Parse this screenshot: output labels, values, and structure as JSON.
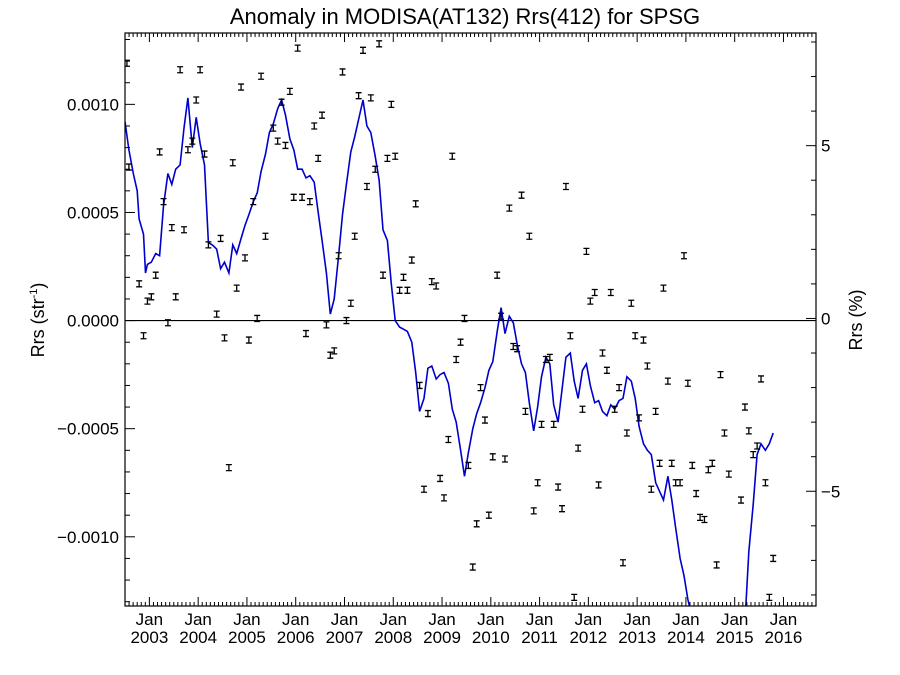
{
  "chart_data": {
    "type": "scatter",
    "title": "Anomaly in MODISA(AT132) Rrs(412) for SPSG",
    "ylabel": "Rrs (str",
    "ylabel_sup": "-1",
    "ylabel_close": ")",
    "y2label": "Rrs (%)",
    "xlim": [
      2002.5,
      2016.667
    ],
    "ylim": [
      -0.00132,
      0.00133
    ],
    "y2lim": [
      -8.32,
      8.26
    ],
    "x_ticks": [
      {
        "x": 2003.0,
        "top": "Jan",
        "bottom": "2003"
      },
      {
        "x": 2004.0,
        "top": "Jan",
        "bottom": "2004"
      },
      {
        "x": 2005.0,
        "top": "Jan",
        "bottom": "2005"
      },
      {
        "x": 2006.0,
        "top": "Jan",
        "bottom": "2006"
      },
      {
        "x": 2007.0,
        "top": "Jan",
        "bottom": "2007"
      },
      {
        "x": 2008.0,
        "top": "Jan",
        "bottom": "2008"
      },
      {
        "x": 2009.0,
        "top": "Jan",
        "bottom": "2009"
      },
      {
        "x": 2010.0,
        "top": "Jan",
        "bottom": "2010"
      },
      {
        "x": 2011.0,
        "top": "Jan",
        "bottom": "2011"
      },
      {
        "x": 2012.0,
        "top": "Jan",
        "bottom": "2012"
      },
      {
        "x": 2013.0,
        "top": "Jan",
        "bottom": "2013"
      },
      {
        "x": 2014.0,
        "top": "Jan",
        "bottom": "2014"
      },
      {
        "x": 2015.0,
        "top": "Jan",
        "bottom": "2015"
      },
      {
        "x": 2016.0,
        "top": "Jan",
        "bottom": "2016"
      }
    ],
    "y_ticks": [
      {
        "value": 0.001,
        "label": "0.0010"
      },
      {
        "value": 0.0005,
        "label": "0.0005"
      },
      {
        "value": 0.0,
        "label": "0.0000"
      },
      {
        "value": -0.0005,
        "label": "−0.0005"
      },
      {
        "value": -0.001,
        "label": "−0.0010"
      }
    ],
    "y2_ticks": [
      {
        "value": 5,
        "label": "5"
      },
      {
        "value": 0,
        "label": "0"
      },
      {
        "value": -5,
        "label": "−5"
      }
    ],
    "zero_line": true,
    "colors": {
      "line": "#0000cc",
      "points": "#000000",
      "axes": "#000000"
    },
    "points": [
      [
        2002.54,
        0.00119
      ],
      [
        2002.58,
        0.00071
      ],
      [
        2002.79,
        0.00017
      ],
      [
        2002.88,
        -7e-05
      ],
      [
        2002.96,
        9e-05
      ],
      [
        2003.04,
        0.00011
      ],
      [
        2003.13,
        0.00021
      ],
      [
        2003.21,
        0.00078
      ],
      [
        2003.29,
        0.00055
      ],
      [
        2003.38,
        -1e-05
      ],
      [
        2003.46,
        0.00043
      ],
      [
        2003.54,
        0.00011
      ],
      [
        2003.63,
        0.00116
      ],
      [
        2003.71,
        0.00042
      ],
      [
        2003.79,
        0.00079
      ],
      [
        2003.88,
        0.00083
      ],
      [
        2003.96,
        0.00102
      ],
      [
        2004.04,
        0.00116
      ],
      [
        2004.13,
        0.00077
      ],
      [
        2004.21,
        0.00035
      ],
      [
        2004.38,
        3e-05
      ],
      [
        2004.46,
        0.00038
      ],
      [
        2004.54,
        -8e-05
      ],
      [
        2004.63,
        -0.00068
      ],
      [
        2004.71,
        0.00073
      ],
      [
        2004.79,
        0.00015
      ],
      [
        2004.88,
        0.00108
      ],
      [
        2004.96,
        0.00029
      ],
      [
        2005.04,
        -9e-05
      ],
      [
        2005.13,
        0.00055
      ],
      [
        2005.21,
        1e-05
      ],
      [
        2005.29,
        0.00113
      ],
      [
        2005.38,
        0.00039
      ],
      [
        2005.54,
        0.00089
      ],
      [
        2005.63,
        0.00083
      ],
      [
        2005.71,
        0.00101
      ],
      [
        2005.79,
        0.00081
      ],
      [
        2005.88,
        0.00106
      ],
      [
        2005.96,
        0.00057
      ],
      [
        2006.04,
        0.00126
      ],
      [
        2006.13,
        0.00057
      ],
      [
        2006.21,
        -6e-05
      ],
      [
        2006.29,
        0.00055
      ],
      [
        2006.38,
        0.0009
      ],
      [
        2006.46,
        0.00075
      ],
      [
        2006.54,
        0.00095
      ],
      [
        2006.63,
        -2e-05
      ],
      [
        2006.71,
        -0.00016
      ],
      [
        2006.79,
        -0.00014
      ],
      [
        2006.88,
        0.0003
      ],
      [
        2006.96,
        0.00115
      ],
      [
        2007.04,
        0.0
      ],
      [
        2007.13,
        8e-05
      ],
      [
        2007.21,
        0.00039
      ],
      [
        2007.29,
        0.00104
      ],
      [
        2007.38,
        0.00125
      ],
      [
        2007.46,
        0.00062
      ],
      [
        2007.54,
        0.00103
      ],
      [
        2007.63,
        0.0007
      ],
      [
        2007.71,
        0.00128
      ],
      [
        2007.79,
        0.00021
      ],
      [
        2007.88,
        0.00075
      ],
      [
        2007.96,
        0.001
      ],
      [
        2008.04,
        0.00076
      ],
      [
        2008.13,
        0.00014
      ],
      [
        2008.21,
        0.0002
      ],
      [
        2008.29,
        0.00014
      ],
      [
        2008.38,
        0.00028
      ],
      [
        2008.46,
        0.00054
      ],
      [
        2008.54,
        -0.0003
      ],
      [
        2008.63,
        -0.00078
      ],
      [
        2008.71,
        -0.00043
      ],
      [
        2008.79,
        0.00018
      ],
      [
        2008.88,
        0.00016
      ],
      [
        2008.96,
        -0.00073
      ],
      [
        2009.04,
        -0.00082
      ],
      [
        2009.13,
        -0.00055
      ],
      [
        2009.21,
        0.00076
      ],
      [
        2009.29,
        -0.00018
      ],
      [
        2009.38,
        -0.0001
      ],
      [
        2009.46,
        1e-05
      ],
      [
        2009.54,
        -0.00067
      ],
      [
        2009.63,
        -0.00114
      ],
      [
        2009.71,
        -0.00094
      ],
      [
        2009.79,
        -0.00031
      ],
      [
        2009.88,
        -0.00046
      ],
      [
        2009.96,
        -0.0009
      ],
      [
        2010.04,
        -0.00063
      ],
      [
        2010.13,
        0.00021
      ],
      [
        2010.21,
        2e-05
      ],
      [
        2010.29,
        -0.00064
      ],
      [
        2010.38,
        0.00052
      ],
      [
        2010.46,
        -0.00012
      ],
      [
        2010.54,
        -0.00013
      ],
      [
        2010.63,
        0.00058
      ],
      [
        2010.71,
        -0.00042
      ],
      [
        2010.79,
        0.00039
      ],
      [
        2010.88,
        -0.00088
      ],
      [
        2010.96,
        -0.00075
      ],
      [
        2011.04,
        -0.00048
      ],
      [
        2011.13,
        -0.00018
      ],
      [
        2011.21,
        -0.00017
      ],
      [
        2011.29,
        -0.00048
      ],
      [
        2011.38,
        -0.00077
      ],
      [
        2011.46,
        -0.00087
      ],
      [
        2011.54,
        0.00062
      ],
      [
        2011.63,
        -7e-05
      ],
      [
        2011.71,
        -0.00128
      ],
      [
        2011.79,
        -0.00059
      ],
      [
        2011.88,
        -0.00041
      ],
      [
        2011.96,
        0.00032
      ],
      [
        2012.04,
        9e-05
      ],
      [
        2012.13,
        0.00013
      ],
      [
        2012.21,
        -0.00076
      ],
      [
        2012.29,
        -0.00015
      ],
      [
        2012.38,
        -0.00023
      ],
      [
        2012.46,
        0.00013
      ],
      [
        2012.54,
        -0.00041
      ],
      [
        2012.63,
        -0.00031
      ],
      [
        2012.71,
        -0.00112
      ],
      [
        2012.79,
        -0.00052
      ],
      [
        2012.88,
        8e-05
      ],
      [
        2012.96,
        -7e-05
      ],
      [
        2013.04,
        -0.00045
      ],
      [
        2013.13,
        -9e-05
      ],
      [
        2013.21,
        -0.00021
      ],
      [
        2013.29,
        -0.00078
      ],
      [
        2013.38,
        -0.00042
      ],
      [
        2013.46,
        -0.00066
      ],
      [
        2013.54,
        0.00015
      ],
      [
        2013.63,
        -0.00028
      ],
      [
        2013.71,
        -0.00066
      ],
      [
        2013.79,
        -0.00075
      ],
      [
        2013.88,
        -0.00075
      ],
      [
        2013.96,
        0.0003
      ],
      [
        2014.04,
        -0.00029
      ],
      [
        2014.13,
        -0.00067
      ],
      [
        2014.21,
        -0.0008
      ],
      [
        2014.29,
        -0.00091
      ],
      [
        2014.38,
        -0.00092
      ],
      [
        2014.46,
        -0.00069
      ],
      [
        2014.54,
        -0.00066
      ],
      [
        2014.63,
        -0.00113
      ],
      [
        2014.71,
        -0.00025
      ],
      [
        2014.79,
        -0.00052
      ],
      [
        2014.88,
        -0.00071
      ],
      [
        2015.13,
        -0.00083
      ],
      [
        2015.21,
        -0.0004
      ],
      [
        2015.29,
        -0.00051
      ],
      [
        2015.38,
        -0.00062
      ],
      [
        2015.46,
        -0.00058
      ],
      [
        2015.54,
        -0.00027
      ],
      [
        2015.63,
        -0.00075
      ],
      [
        2015.71,
        -0.00128
      ],
      [
        2015.79,
        -0.0011
      ]
    ],
    "line": [
      [
        2002.5,
        0.00092
      ],
      [
        2002.58,
        0.00079
      ],
      [
        2002.67,
        0.00068
      ],
      [
        2002.75,
        0.0006
      ],
      [
        2002.79,
        0.00047
      ],
      [
        2002.88,
        0.0004
      ],
      [
        2002.92,
        0.00022
      ],
      [
        2002.96,
        0.00026
      ],
      [
        2003.04,
        0.00027
      ],
      [
        2003.13,
        0.00031
      ],
      [
        2003.21,
        0.0003
      ],
      [
        2003.29,
        0.00053
      ],
      [
        2003.38,
        0.00068
      ],
      [
        2003.46,
        0.00063
      ],
      [
        2003.54,
        0.0007
      ],
      [
        2003.63,
        0.00072
      ],
      [
        2003.71,
        0.00089
      ],
      [
        2003.79,
        0.00103
      ],
      [
        2003.88,
        0.0008
      ],
      [
        2003.96,
        0.00094
      ],
      [
        2004.04,
        0.00082
      ],
      [
        2004.13,
        0.00072
      ],
      [
        2004.21,
        0.00036
      ],
      [
        2004.29,
        0.00035
      ],
      [
        2004.38,
        0.00033
      ],
      [
        2004.46,
        0.00024
      ],
      [
        2004.54,
        0.00027
      ],
      [
        2004.63,
        0.00022
      ],
      [
        2004.71,
        0.00035
      ],
      [
        2004.79,
        0.00031
      ],
      [
        2004.88,
        0.00038
      ],
      [
        2004.96,
        0.00044
      ],
      [
        2005.04,
        0.00049
      ],
      [
        2005.13,
        0.00055
      ],
      [
        2005.21,
        0.00059
      ],
      [
        2005.29,
        0.00069
      ],
      [
        2005.38,
        0.00077
      ],
      [
        2005.46,
        0.00087
      ],
      [
        2005.54,
        0.00091
      ],
      [
        2005.63,
        0.00098
      ],
      [
        2005.71,
        0.00102
      ],
      [
        2005.79,
        0.00095
      ],
      [
        2005.88,
        0.00084
      ],
      [
        2005.96,
        0.00079
      ],
      [
        2006.04,
        0.0007
      ],
      [
        2006.13,
        0.0007
      ],
      [
        2006.21,
        0.00066
      ],
      [
        2006.29,
        0.00067
      ],
      [
        2006.38,
        0.00064
      ],
      [
        2006.46,
        0.0005
      ],
      [
        2006.54,
        0.00037
      ],
      [
        2006.63,
        0.00022
      ],
      [
        2006.71,
        3e-05
      ],
      [
        2006.79,
        0.0001
      ],
      [
        2006.88,
        0.0003
      ],
      [
        2006.96,
        0.00049
      ],
      [
        2007.04,
        0.00063
      ],
      [
        2007.13,
        0.00078
      ],
      [
        2007.21,
        0.00085
      ],
      [
        2007.29,
        0.00093
      ],
      [
        2007.38,
        0.00102
      ],
      [
        2007.46,
        0.0009
      ],
      [
        2007.54,
        0.00087
      ],
      [
        2007.63,
        0.00076
      ],
      [
        2007.71,
        0.00065
      ],
      [
        2007.79,
        0.00042
      ],
      [
        2007.88,
        0.00037
      ],
      [
        2007.96,
        0.00017
      ],
      [
        2008.04,
        0.0
      ],
      [
        2008.13,
        -3e-05
      ],
      [
        2008.21,
        -4e-05
      ],
      [
        2008.29,
        -5e-05
      ],
      [
        2008.38,
        -0.0001
      ],
      [
        2008.46,
        -0.00024
      ],
      [
        2008.54,
        -0.00042
      ],
      [
        2008.63,
        -0.00036
      ],
      [
        2008.71,
        -0.00022
      ],
      [
        2008.79,
        -0.00021
      ],
      [
        2008.88,
        -0.00027
      ],
      [
        2008.96,
        -0.00025
      ],
      [
        2009.04,
        -0.00024
      ],
      [
        2009.13,
        -0.00029
      ],
      [
        2009.21,
        -0.00041
      ],
      [
        2009.29,
        -0.00047
      ],
      [
        2009.38,
        -0.0006
      ],
      [
        2009.46,
        -0.00072
      ],
      [
        2009.54,
        -0.00061
      ],
      [
        2009.63,
        -0.0005
      ],
      [
        2009.71,
        -0.00043
      ],
      [
        2009.79,
        -0.00038
      ],
      [
        2009.88,
        -0.00031
      ],
      [
        2009.96,
        -0.00023
      ],
      [
        2010.04,
        -0.00019
      ],
      [
        2010.13,
        -5e-05
      ],
      [
        2010.21,
        6e-05
      ],
      [
        2010.29,
        -6e-05
      ],
      [
        2010.38,
        2e-05
      ],
      [
        2010.46,
        -1e-05
      ],
      [
        2010.54,
        -0.00011
      ],
      [
        2010.63,
        -0.0002
      ],
      [
        2010.71,
        -0.00024
      ],
      [
        2010.79,
        -0.00038
      ],
      [
        2010.88,
        -0.00051
      ],
      [
        2010.96,
        -0.0004
      ],
      [
        2011.04,
        -0.00026
      ],
      [
        2011.13,
        -0.00017
      ],
      [
        2011.21,
        -0.0002
      ],
      [
        2011.29,
        -0.00039
      ],
      [
        2011.38,
        -0.00047
      ],
      [
        2011.46,
        -0.00032
      ],
      [
        2011.54,
        -0.00017
      ],
      [
        2011.63,
        -0.00015
      ],
      [
        2011.71,
        -0.00028
      ],
      [
        2011.79,
        -0.00036
      ],
      [
        2011.88,
        -0.00023
      ],
      [
        2011.96,
        -0.0002
      ],
      [
        2012.04,
        -0.0003
      ],
      [
        2012.13,
        -0.00038
      ],
      [
        2012.21,
        -0.00037
      ],
      [
        2012.29,
        -0.00042
      ],
      [
        2012.38,
        -0.00044
      ],
      [
        2012.46,
        -0.00039
      ],
      [
        2012.54,
        -0.00041
      ],
      [
        2012.63,
        -0.00037
      ],
      [
        2012.71,
        -0.00036
      ],
      [
        2012.79,
        -0.00026
      ],
      [
        2012.88,
        -0.00028
      ],
      [
        2012.96,
        -0.00036
      ],
      [
        2013.04,
        -0.00049
      ],
      [
        2013.13,
        -0.00057
      ],
      [
        2013.21,
        -0.0006
      ],
      [
        2013.29,
        -0.00062
      ],
      [
        2013.38,
        -0.00075
      ],
      [
        2013.46,
        -0.00079
      ],
      [
        2013.54,
        -0.00083
      ],
      [
        2013.63,
        -0.00072
      ],
      [
        2013.71,
        -0.00083
      ],
      [
        2013.79,
        -0.00096
      ],
      [
        2013.88,
        -0.0011
      ],
      [
        2013.96,
        -0.00118
      ],
      [
        2014.04,
        -0.00129
      ],
      [
        2014.13,
        -0.00138
      ],
      [
        2014.21,
        -0.0014
      ]
    ],
    "line2": [
      [
        2015.21,
        -0.0014
      ],
      [
        2015.29,
        -0.00107
      ],
      [
        2015.38,
        -0.00085
      ],
      [
        2015.46,
        -0.00062
      ],
      [
        2015.54,
        -0.00057
      ],
      [
        2015.63,
        -0.0006
      ],
      [
        2015.71,
        -0.00057
      ],
      [
        2015.79,
        -0.00052
      ]
    ]
  }
}
